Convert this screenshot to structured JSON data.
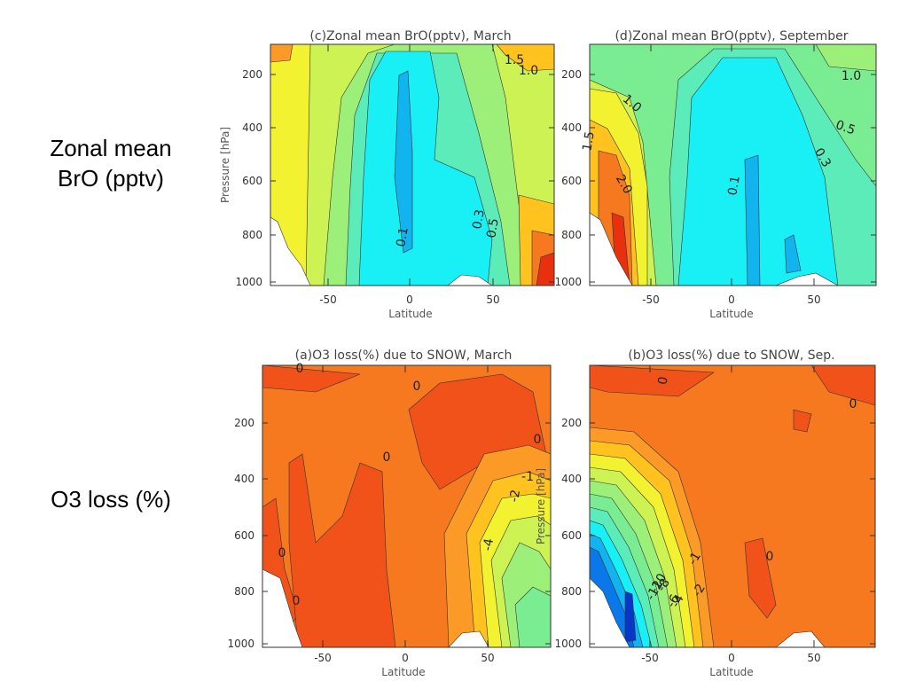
{
  "row_labels": {
    "bro_line1": "Zonal mean",
    "bro_line2": "BrO (pptv)",
    "o3": "O3 loss (%)"
  },
  "colors": {
    "red": "#e8300e",
    "orange_red": "#f0521a",
    "orange": "#f6781f",
    "light_orange": "#fb9a26",
    "yellow_orange": "#ffc21e",
    "yellow": "#f2f230",
    "yellow_green": "#cdf253",
    "light_green": "#9cf07a",
    "green": "#7aed93",
    "aqua_green": "#5cecb9",
    "cyan": "#18f0f6",
    "light_blue": "#12b4f0",
    "blue": "#0a78e8",
    "dark_blue": "#0837c8",
    "navy": "#0a1ea8"
  },
  "chart_data": [
    {
      "type": "heatmap",
      "title": "(c)Zonal mean BrO(pptv), March",
      "xlabel": "Latitude",
      "ylabel": "Pressure [hPa]",
      "xlim": [
        -90,
        90
      ],
      "ylim": [
        1000,
        100
      ],
      "xticks": [
        "-50",
        "0",
        "50"
      ],
      "yticks": [
        "200",
        "400",
        "600",
        "800",
        "1000"
      ],
      "contour_labels": [
        "1.5",
        "1.0",
        "0.1",
        "0.5",
        "0.3"
      ]
    },
    {
      "type": "heatmap",
      "title": "(d)Zonal mean BrO(pptv), September",
      "xlabel": "Latitude",
      "ylabel": "",
      "xlim": [
        -90,
        90
      ],
      "ylim": [
        1000,
        100
      ],
      "xticks": [
        "-50",
        "0",
        "50"
      ],
      "yticks": [
        "200",
        "400",
        "600",
        "800",
        "1000"
      ],
      "contour_labels": [
        "1.0",
        "1.0",
        "0.5",
        "0.3",
        "1.5",
        "2.0",
        "0.1"
      ]
    },
    {
      "type": "heatmap",
      "title": "(a)O3 loss(%) due to SNOW, March",
      "xlabel": "Latitude",
      "ylabel": "",
      "xlim": [
        -90,
        90
      ],
      "ylim": [
        1000,
        100
      ],
      "xticks": [
        "-50",
        "0",
        "50"
      ],
      "yticks": [
        "200",
        "400",
        "600",
        "800",
        "1000"
      ],
      "contour_labels": [
        "0",
        "0",
        "0",
        "0",
        "-1",
        "-2",
        "-4",
        "0",
        "0"
      ]
    },
    {
      "type": "heatmap",
      "title": "(b)O3 loss(%) due to SNOW, Sep.",
      "xlabel": "Latitude",
      "ylabel": "Pressure [hPa]",
      "xlim": [
        -90,
        90
      ],
      "ylim": [
        1000,
        100
      ],
      "xticks": [
        "-50",
        "0",
        "50"
      ],
      "yticks": [
        "200",
        "400",
        "600",
        "800",
        "1000"
      ],
      "contour_labels": [
        "0",
        "0",
        "0",
        "-1",
        "-2",
        "-4",
        "-6",
        "-8",
        "-10",
        "-12"
      ]
    }
  ]
}
